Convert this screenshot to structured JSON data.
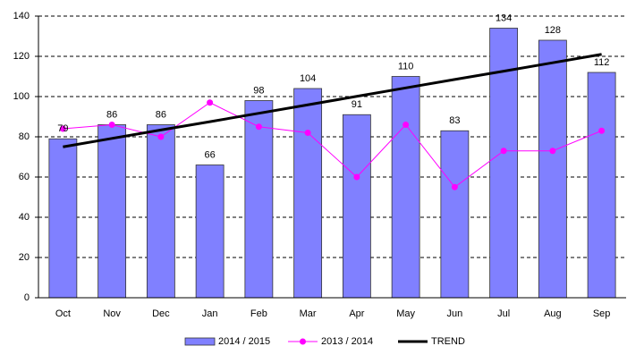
{
  "chart_data": {
    "type": "bar",
    "categories": [
      "Oct",
      "Nov",
      "Dec",
      "Jan",
      "Feb",
      "Mar",
      "Apr",
      "May",
      "Jun",
      "Jul",
      "Aug",
      "Sep"
    ],
    "series": [
      {
        "name": "2014 / 2015",
        "type": "bar",
        "color": "#8080ff",
        "values": [
          79,
          86,
          86,
          66,
          98,
          104,
          91,
          110,
          83,
          134,
          128,
          112
        ],
        "data_labels": true
      },
      {
        "name": "2013 / 2014",
        "type": "line",
        "color": "#ff00ff",
        "marker": true,
        "values": [
          84,
          86,
          80,
          97,
          85,
          82,
          60,
          86,
          55,
          73,
          73,
          83
        ]
      },
      {
        "name": "TREND",
        "type": "line",
        "color": "#000000",
        "marker": false,
        "values": [
          75,
          79.2,
          83.4,
          87.5,
          91.7,
          95.9,
          100.1,
          104.3,
          108.5,
          112.6,
          116.8,
          121
        ]
      }
    ],
    "ylim": [
      0,
      140
    ],
    "yticks": [
      0,
      20,
      40,
      60,
      80,
      100,
      120,
      140
    ],
    "grid": true,
    "legend": "bottom"
  }
}
